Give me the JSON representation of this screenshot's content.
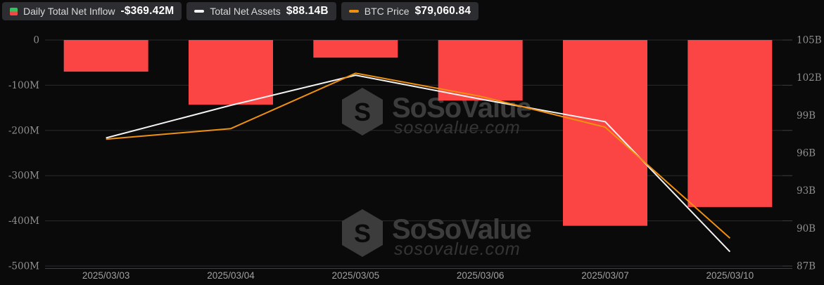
{
  "legend": {
    "items": [
      {
        "label": "Daily Total Net Inflow",
        "value": "-$369.42M",
        "icon": "inflow-split-square-icon",
        "icon_type": "split-square",
        "icon_colors": [
          "#2ec45e",
          "#fb4545"
        ]
      },
      {
        "label": "Total Net Assets",
        "value": "$88.14B",
        "icon": "net-assets-dash-icon",
        "icon_type": "dash",
        "icon_colors": [
          "#f3f3f3"
        ]
      },
      {
        "label": "BTC Price",
        "value": "$79,060.84",
        "icon": "btc-price-dash-icon",
        "icon_type": "dash",
        "icon_colors": [
          "#f0900f"
        ]
      }
    ]
  },
  "watermark": {
    "brand": "SoSoValue",
    "domain": "sosovalue.com"
  },
  "colors": {
    "background": "#0a0a0b",
    "bar": "#fb4545",
    "assets_line": "#f3f3f3",
    "btc_line": "#f0900f",
    "grid": "#2b2b2d",
    "axis_line": "#3e3e40",
    "y_axis_text": "#8f8f8f",
    "x_axis_text": "#a0a0a0",
    "watermark_brand": "#3c3c3c",
    "watermark_domain": "#353535",
    "legend_chip_bg": "#2b2d31"
  },
  "chart_data": {
    "type": "bar+line combo",
    "title": "",
    "categories": [
      "2025/03/03",
      "2025/03/04",
      "2025/03/05",
      "2025/03/06",
      "2025/03/07",
      "2025/03/10"
    ],
    "series": [
      {
        "name": "Daily Total Net Inflow",
        "type": "bar",
        "axis": "left",
        "unit": "USD millions",
        "color": "#fb4545",
        "values": [
          -70,
          -143,
          -39,
          -134,
          -411,
          -369.42
        ]
      },
      {
        "name": "Total Net Assets",
        "type": "line",
        "axis": "right",
        "unit": "USD billions",
        "color": "#f3f3f3",
        "values": [
          97.2,
          99.8,
          102.2,
          100.3,
          98.5,
          88.14
        ]
      },
      {
        "name": "BTC Price",
        "type": "line",
        "axis": "hidden",
        "unit": "USD",
        "color": "#f0900f",
        "values": [
          86000,
          86740,
          90620,
          89000,
          86840,
          79060.84
        ]
      }
    ],
    "left_axis": {
      "min": -500,
      "max": 0,
      "tick_labels": [
        "0",
        "-100M",
        "-200M",
        "-300M",
        "-400M",
        "-500M"
      ]
    },
    "right_axis": {
      "min": 87,
      "max": 105,
      "tick_labels": [
        "105B",
        "102B",
        "99B",
        "96B",
        "93B",
        "90B",
        "87B"
      ]
    },
    "btc_hidden_axis": {
      "min": 77100,
      "max": 92950
    },
    "grid": "horizontal gridlines only",
    "legend_position": "top-left"
  }
}
